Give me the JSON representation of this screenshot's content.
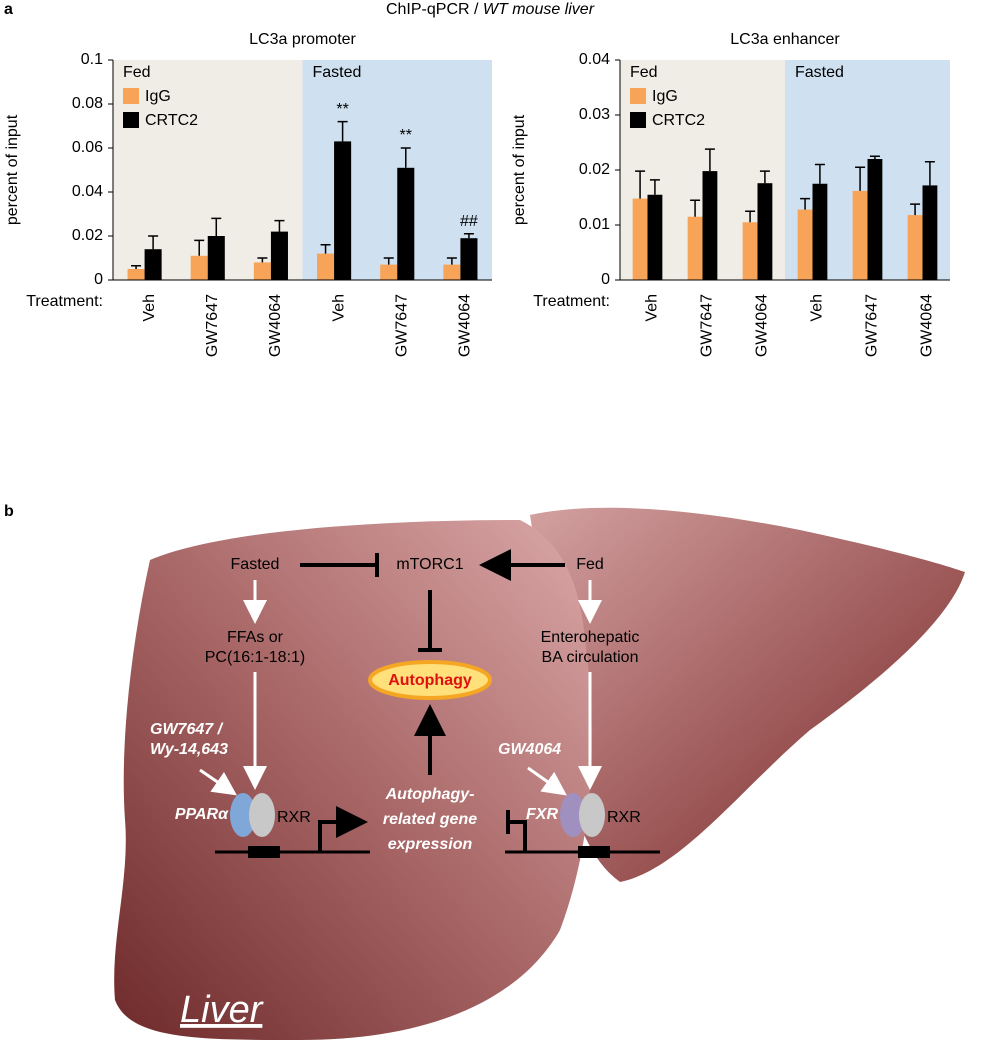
{
  "panel_a_label": "a",
  "suptitle": [
    "ChIP-qPCR /",
    "WT mouse liver"
  ],
  "chart_data": [
    {
      "type": "bar",
      "title": "LC3a promoter",
      "ylabel": "percent of input",
      "xlabel": "Treatment:",
      "categories": [
        "Veh",
        "GW7647",
        "GW4064",
        "Veh",
        "GW7647",
        "GW4064"
      ],
      "region_labels": [
        "Fed",
        "Fasted"
      ],
      "region_colors": [
        "#f0ede6",
        "#cfe0f0"
      ],
      "series": [
        {
          "name": "IgG",
          "color": "#f7a458",
          "values": [
            0.005,
            0.011,
            0.008,
            0.012,
            0.007,
            0.007
          ],
          "errors": [
            0.0015,
            0.007,
            0.002,
            0.004,
            0.003,
            0.003
          ]
        },
        {
          "name": "CRTC2",
          "color": "#000000",
          "values": [
            0.014,
            0.02,
            0.022,
            0.063,
            0.051,
            0.019
          ],
          "errors": [
            0.006,
            0.008,
            0.005,
            0.009,
            0.009,
            0.002
          ]
        }
      ],
      "annotations": [
        null,
        null,
        null,
        "**",
        "**",
        "##"
      ],
      "ylim": [
        0,
        0.1
      ],
      "yticks": [
        0,
        0.02,
        0.04,
        0.06,
        0.08,
        0.1
      ]
    },
    {
      "type": "bar",
      "title": "LC3a enhancer",
      "ylabel": "percent of input",
      "xlabel": "Treatment:",
      "categories": [
        "Veh",
        "GW7647",
        "GW4064",
        "Veh",
        "GW7647",
        "GW4064"
      ],
      "region_labels": [
        "Fed",
        "Fasted"
      ],
      "region_colors": [
        "#f0ede6",
        "#cfe0f0"
      ],
      "series": [
        {
          "name": "IgG",
          "color": "#f7a458",
          "values": [
            0.0148,
            0.0115,
            0.0105,
            0.0128,
            0.0162,
            0.0118
          ],
          "errors": [
            0.005,
            0.003,
            0.002,
            0.002,
            0.0043,
            0.002
          ]
        },
        {
          "name": "CRTC2",
          "color": "#000000",
          "values": [
            0.0155,
            0.0198,
            0.0176,
            0.0175,
            0.022,
            0.0172
          ],
          "errors": [
            0.0027,
            0.004,
            0.0022,
            0.0035,
            0.0005,
            0.0043
          ]
        }
      ],
      "ylim": [
        0,
        0.04
      ],
      "yticks": [
        0,
        0.01,
        0.02,
        0.03,
        0.04
      ]
    }
  ],
  "diagram": {
    "panel_label": "b",
    "fasted": "Fasted",
    "mtorc1": "mTORC1",
    "fed": "Fed",
    "ffas": [
      "FFAs or",
      "PC(16:1-18:1)"
    ],
    "autophagy": "Autophagy",
    "bile": [
      "Enterohepatic",
      "BA circulation"
    ],
    "ppar_ligand": [
      "GW7647 /",
      "Wy-14,643"
    ],
    "ppar": "PPARα",
    "rxr_left": "RXR",
    "gene_expression": [
      "Autophagy-",
      "related gene",
      "expression"
    ],
    "fxr_ligand": "GW4064",
    "fxr": "FXR",
    "rxr_right": "RXR",
    "organ": "Liver"
  }
}
